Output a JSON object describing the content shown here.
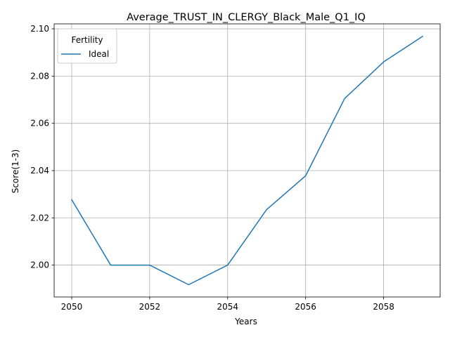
{
  "chart_data": {
    "type": "line",
    "title": "Average_TRUST_IN_CLERGY_Black_Male_Q1_IQ",
    "xlabel": "Years",
    "ylabel": "Score(1-3)",
    "x": [
      2050,
      2051,
      2052,
      2053,
      2054,
      2055,
      2056,
      2057,
      2058,
      2059
    ],
    "series": [
      {
        "name": "Ideal",
        "values": [
          2.0277,
          2.0,
          2.0,
          1.9917,
          2.0,
          2.0235,
          2.0378,
          2.0705,
          2.086,
          2.0968
        ],
        "color": "#1f77b4"
      }
    ],
    "xlim": [
      2049.55,
      2059.45
    ],
    "ylim": [
      1.9865,
      2.1021
    ],
    "xticks": [
      2050,
      2052,
      2054,
      2056,
      2058
    ],
    "yticks": [
      "2.00",
      "2.02",
      "2.04",
      "2.06",
      "2.08",
      "2.10"
    ],
    "grid": true,
    "legend": {
      "title": "Fertility",
      "placement": "upper-left"
    }
  }
}
